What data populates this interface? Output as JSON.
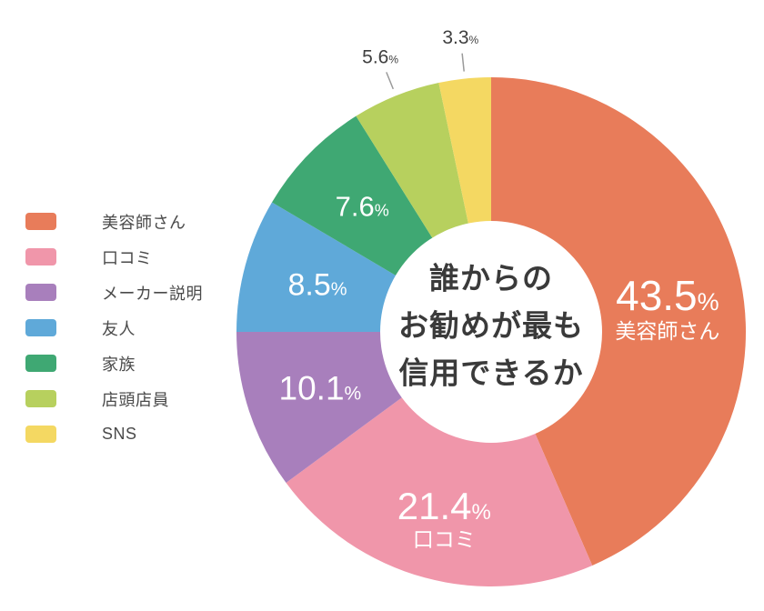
{
  "chart_data": {
    "type": "pie",
    "donut": true,
    "title_lines": [
      "誰からの",
      "お勧めが最も",
      "信用できるか"
    ],
    "categories": [
      "美容師さん",
      "口コミ",
      "メーカー説明",
      "友人",
      "家族",
      "店頭店員",
      "SNS"
    ],
    "values": [
      43.5,
      21.4,
      10.1,
      8.5,
      7.6,
      5.6,
      3.3
    ],
    "unit": "%",
    "colors": [
      "#e87c5a",
      "#f096aa",
      "#a87fbc",
      "#5fa9d9",
      "#3fa873",
      "#b7d05e",
      "#f4d862"
    ],
    "label_placement": [
      "inside",
      "inside",
      "inside",
      "inside",
      "inside",
      "outside",
      "outside"
    ],
    "name_in_slice": [
      true,
      true,
      false,
      false,
      false,
      false,
      false
    ],
    "legend_position": "left",
    "start_angle_deg": -90,
    "direction": "clockwise",
    "inside_label_color": "#ffffff",
    "outside_label_color": "#3f3f3f",
    "leader_line_color": "#9a9a9a",
    "center_text_color": "#3a3a3a"
  },
  "legend": {
    "items": [
      {
        "label": "美容師さん",
        "color": "#e87c5a"
      },
      {
        "label": "口コミ",
        "color": "#f096aa"
      },
      {
        "label": "メーカー説明",
        "color": "#a87fbc"
      },
      {
        "label": "友人",
        "color": "#5fa9d9"
      },
      {
        "label": "家族",
        "color": "#3fa873"
      },
      {
        "label": "店頭店員",
        "color": "#b7d05e"
      },
      {
        "label": "SNS",
        "color": "#f4d862"
      }
    ]
  }
}
